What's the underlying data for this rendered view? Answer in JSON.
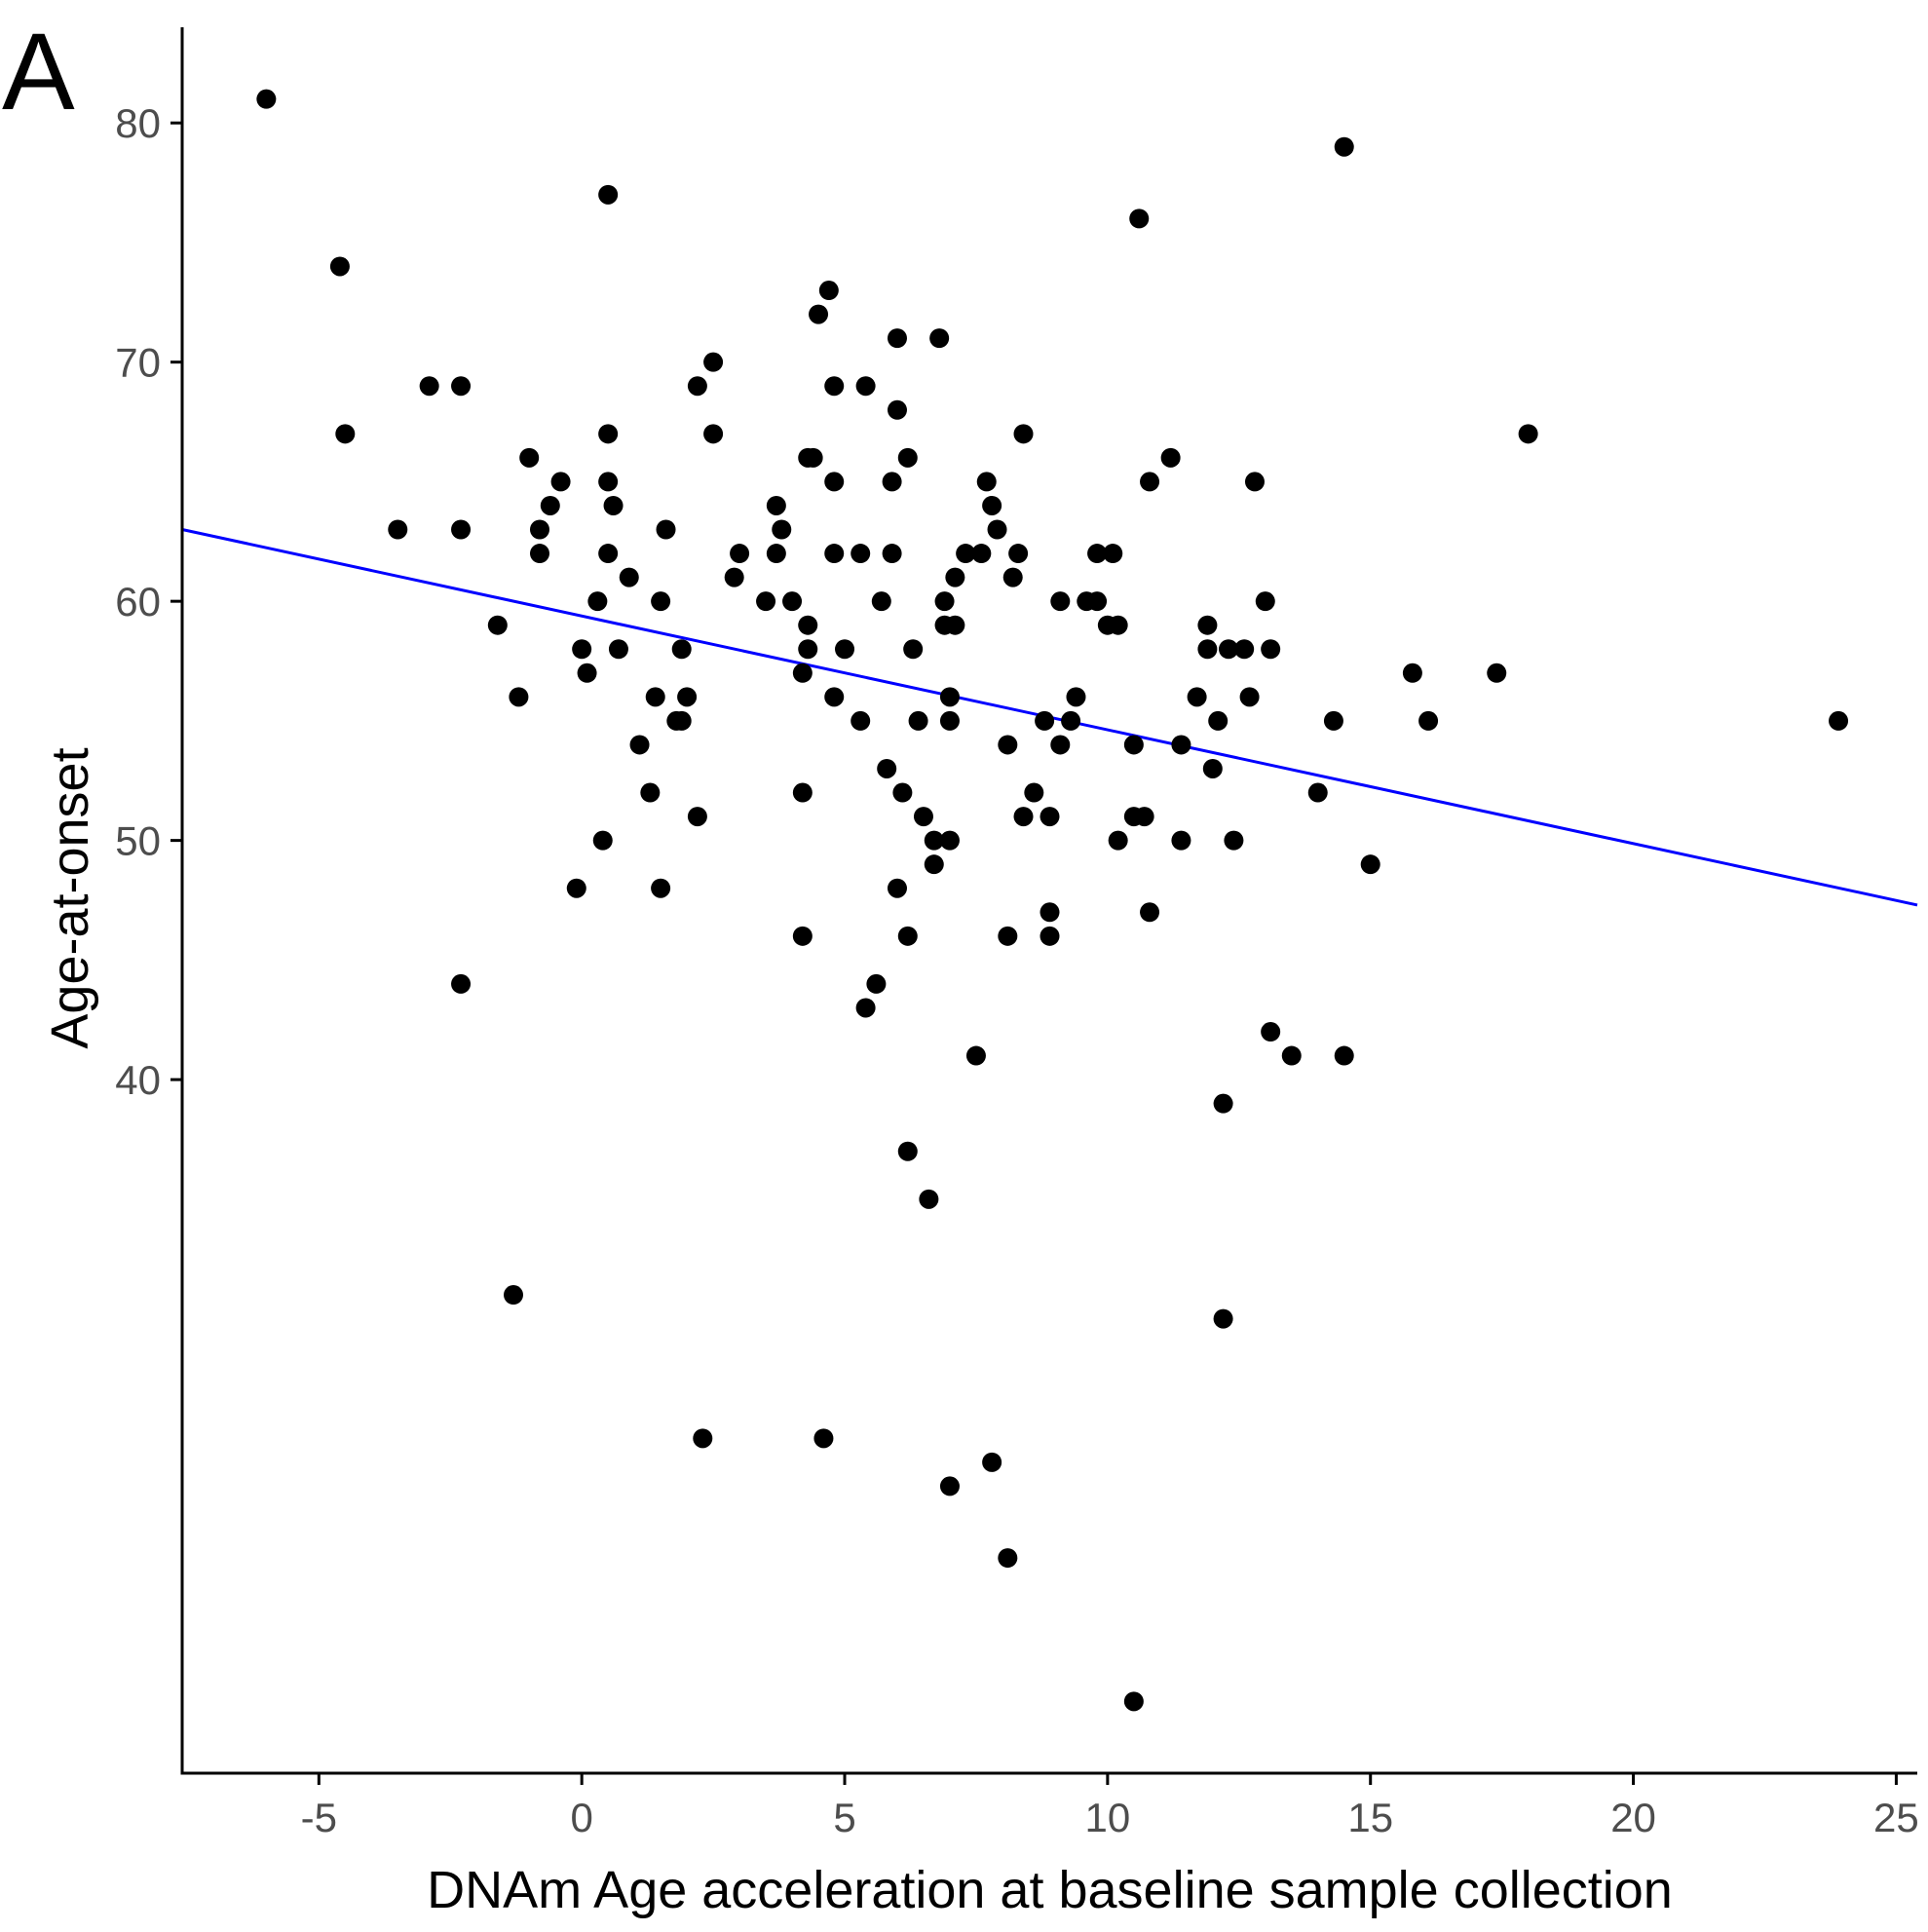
{
  "chart_data": {
    "type": "scatter",
    "panel_label": "A",
    "title": "",
    "xlabel": "DNAm Age acceleration at baseline sample collection",
    "ylabel": "Age-at-onset",
    "xlim": [
      -7.6,
      25.4
    ],
    "ylim": [
      11,
      84
    ],
    "x_ticks": [
      -5,
      0,
      5,
      10,
      15,
      20,
      25
    ],
    "y_ticks": [
      40,
      50,
      60,
      70,
      80
    ],
    "x_tick_labels": [
      "-5",
      "0",
      "5",
      "10",
      "15",
      "20",
      "25"
    ],
    "y_tick_labels": [
      "40",
      "50",
      "60",
      "70",
      "80"
    ],
    "grid": false,
    "legend": "none",
    "colors": {
      "points": "#000000",
      "fit_line": "#0000ff",
      "axis": "#000000",
      "tick_label": "#4d4d4d"
    },
    "fit_line": {
      "x": [
        -7.6,
        25.4
      ],
      "y": [
        63.0,
        47.3
      ]
    },
    "points": [
      [
        -6.0,
        81
      ],
      [
        -4.6,
        74
      ],
      [
        -4.5,
        67
      ],
      [
        -3.5,
        63
      ],
      [
        -2.9,
        69
      ],
      [
        -2.3,
        69
      ],
      [
        -2.3,
        63
      ],
      [
        -2.3,
        44
      ],
      [
        -1.6,
        59
      ],
      [
        -1.3,
        31
      ],
      [
        -1.2,
        56
      ],
      [
        -1.0,
        66
      ],
      [
        -0.8,
        63
      ],
      [
        -0.8,
        62
      ],
      [
        -0.6,
        64
      ],
      [
        -0.4,
        65
      ],
      [
        0.0,
        58
      ],
      [
        -0.1,
        48
      ],
      [
        0.1,
        57
      ],
      [
        0.3,
        60
      ],
      [
        0.4,
        50
      ],
      [
        0.5,
        77
      ],
      [
        0.5,
        67
      ],
      [
        0.5,
        65
      ],
      [
        0.5,
        62
      ],
      [
        0.6,
        64
      ],
      [
        0.7,
        58
      ],
      [
        0.9,
        61
      ],
      [
        1.1,
        54
      ],
      [
        1.3,
        52
      ],
      [
        1.4,
        56
      ],
      [
        1.5,
        60
      ],
      [
        1.5,
        48
      ],
      [
        1.6,
        63
      ],
      [
        1.8,
        55
      ],
      [
        1.9,
        58
      ],
      [
        1.9,
        55
      ],
      [
        2.0,
        56
      ],
      [
        2.2,
        51
      ],
      [
        2.2,
        69
      ],
      [
        2.3,
        25
      ],
      [
        2.5,
        70
      ],
      [
        2.5,
        67
      ],
      [
        2.9,
        61
      ],
      [
        3.0,
        62
      ],
      [
        3.5,
        60
      ],
      [
        3.7,
        64
      ],
      [
        3.7,
        62
      ],
      [
        3.8,
        63
      ],
      [
        4.0,
        60
      ],
      [
        4.2,
        57
      ],
      [
        4.2,
        52
      ],
      [
        4.2,
        46
      ],
      [
        4.3,
        66
      ],
      [
        4.3,
        59
      ],
      [
        4.3,
        58
      ],
      [
        4.4,
        66
      ],
      [
        4.5,
        72
      ],
      [
        4.6,
        25
      ],
      [
        4.7,
        73
      ],
      [
        4.8,
        69
      ],
      [
        4.8,
        65
      ],
      [
        4.8,
        62
      ],
      [
        4.8,
        56
      ],
      [
        5.0,
        58
      ],
      [
        5.3,
        55
      ],
      [
        5.3,
        62
      ],
      [
        5.4,
        69
      ],
      [
        5.4,
        43
      ],
      [
        5.6,
        44
      ],
      [
        5.7,
        60
      ],
      [
        5.8,
        53
      ],
      [
        5.9,
        65
      ],
      [
        5.9,
        62
      ],
      [
        6.0,
        68
      ],
      [
        6.0,
        48
      ],
      [
        6.0,
        71
      ],
      [
        6.1,
        52
      ],
      [
        6.2,
        66
      ],
      [
        6.2,
        46
      ],
      [
        6.2,
        37
      ],
      [
        6.3,
        58
      ],
      [
        6.4,
        55
      ],
      [
        6.5,
        51
      ],
      [
        6.6,
        35
      ],
      [
        6.7,
        50
      ],
      [
        6.7,
        49
      ],
      [
        6.8,
        71
      ],
      [
        6.9,
        60
      ],
      [
        6.9,
        59
      ],
      [
        7.0,
        56
      ],
      [
        7.0,
        55
      ],
      [
        7.0,
        50
      ],
      [
        7.0,
        23
      ],
      [
        7.1,
        61
      ],
      [
        7.1,
        59
      ],
      [
        7.3,
        62
      ],
      [
        7.5,
        41
      ],
      [
        7.6,
        62
      ],
      [
        7.7,
        65
      ],
      [
        7.8,
        64
      ],
      [
        7.8,
        24
      ],
      [
        7.9,
        63
      ],
      [
        8.1,
        54
      ],
      [
        8.1,
        46
      ],
      [
        8.1,
        20
      ],
      [
        8.2,
        61
      ],
      [
        8.3,
        62
      ],
      [
        8.4,
        67
      ],
      [
        8.4,
        51
      ],
      [
        8.6,
        52
      ],
      [
        8.8,
        55
      ],
      [
        8.9,
        51
      ],
      [
        8.9,
        47
      ],
      [
        8.9,
        46
      ],
      [
        9.1,
        60
      ],
      [
        9.1,
        54
      ],
      [
        9.3,
        55
      ],
      [
        9.4,
        56
      ],
      [
        9.6,
        60
      ],
      [
        9.8,
        60
      ],
      [
        9.8,
        62
      ],
      [
        10.0,
        59
      ],
      [
        10.1,
        62
      ],
      [
        10.2,
        59
      ],
      [
        10.2,
        50
      ],
      [
        10.5,
        54
      ],
      [
        10.5,
        51
      ],
      [
        10.5,
        14
      ],
      [
        10.6,
        76
      ],
      [
        10.7,
        51
      ],
      [
        10.8,
        47
      ],
      [
        10.8,
        65
      ],
      [
        11.2,
        66
      ],
      [
        11.4,
        54
      ],
      [
        11.4,
        50
      ],
      [
        11.7,
        56
      ],
      [
        11.9,
        59
      ],
      [
        11.9,
        58
      ],
      [
        12.0,
        53
      ],
      [
        12.1,
        55
      ],
      [
        12.2,
        39
      ],
      [
        12.2,
        30
      ],
      [
        12.3,
        58
      ],
      [
        12.4,
        50
      ],
      [
        12.6,
        58
      ],
      [
        12.7,
        56
      ],
      [
        12.8,
        65
      ],
      [
        13.0,
        60
      ],
      [
        13.1,
        58
      ],
      [
        13.1,
        42
      ],
      [
        13.5,
        41
      ],
      [
        14.0,
        52
      ],
      [
        14.3,
        55
      ],
      [
        14.5,
        79
      ],
      [
        14.5,
        41
      ],
      [
        15.0,
        49
      ],
      [
        15.8,
        57
      ],
      [
        16.1,
        55
      ],
      [
        17.4,
        57
      ],
      [
        18.0,
        67
      ],
      [
        23.9,
        55
      ]
    ]
  }
}
